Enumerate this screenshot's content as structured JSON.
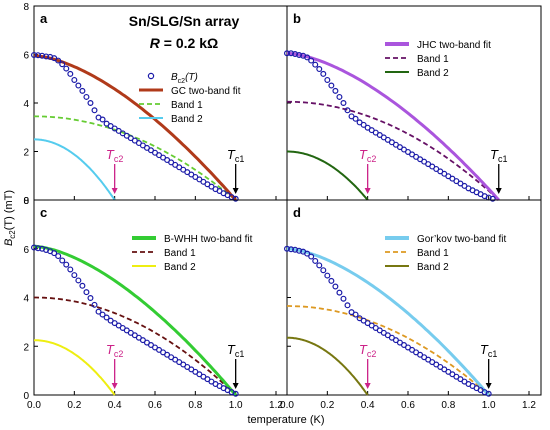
{
  "figure": {
    "ylabel_main": "B",
    "ylabel_sub": "c2",
    "ylabel_tail": "(T) (mT)",
    "xlabel": "temperature (K)",
    "x_ticks": [
      "0.0",
      "0.2",
      "0.4",
      "0.6",
      "0.8",
      "1.0",
      "0.0",
      "0.2",
      "0.4",
      "0.6",
      "0.8",
      "1.0",
      "1.2"
    ],
    "y_ticks_top": [
      "0",
      "2",
      "4",
      "6",
      "8"
    ],
    "y_ticks_bottom": [
      "0",
      "2",
      "4",
      "6",
      "8"
    ]
  },
  "chart_data": [
    {
      "panel": "a",
      "type": "scatter",
      "xlim": [
        0,
        1.2
      ],
      "ylim": [
        0,
        8
      ],
      "title_line1": "Sn/SLG/Sn array",
      "title_r": "R",
      "title_val": " = 0.2 kΩ",
      "legend": [
        "B",
        "c2",
        "(T)",
        "GC two-band fit",
        "Band 1",
        "Band 2"
      ],
      "tc2": {
        "label_main": "T",
        "label_sub": "c2",
        "x": 0.4
      },
      "tc1": {
        "label_main": "T",
        "label_sub": "c1",
        "x": 1.0
      },
      "fit": {
        "name": "GC two-band fit",
        "color": "#b03a1a",
        "tc": 1.0,
        "b0": 5.95,
        "p": 1.6
      },
      "band1": {
        "name": "Band 1",
        "color": "#66cc33",
        "tc": 1.0,
        "b0": 3.45,
        "p": 2.0
      },
      "band2": {
        "name": "Band 2",
        "color": "#55ccee",
        "tc": 0.4,
        "b0": 2.5,
        "p": 2.0
      },
      "points": [
        [
          0.0,
          5.98
        ],
        [
          0.02,
          5.97
        ],
        [
          0.04,
          5.95
        ],
        [
          0.06,
          5.92
        ],
        [
          0.08,
          5.9
        ],
        [
          0.1,
          5.85
        ],
        [
          0.12,
          5.75
        ],
        [
          0.14,
          5.6
        ],
        [
          0.16,
          5.42
        ],
        [
          0.18,
          5.2
        ],
        [
          0.2,
          4.95
        ],
        [
          0.22,
          4.72
        ],
        [
          0.24,
          4.5
        ],
        [
          0.26,
          4.25
        ],
        [
          0.28,
          4.0
        ],
        [
          0.3,
          3.7
        ],
        [
          0.32,
          3.4
        ],
        [
          0.34,
          3.32
        ],
        [
          0.36,
          3.15
        ],
        [
          0.38,
          3.05
        ],
        [
          0.4,
          2.95
        ],
        [
          0.42,
          2.85
        ],
        [
          0.44,
          2.75
        ],
        [
          0.46,
          2.65
        ],
        [
          0.48,
          2.55
        ],
        [
          0.5,
          2.45
        ],
        [
          0.52,
          2.35
        ],
        [
          0.54,
          2.25
        ],
        [
          0.56,
          2.15
        ],
        [
          0.58,
          2.05
        ],
        [
          0.6,
          1.95
        ],
        [
          0.62,
          1.85
        ],
        [
          0.64,
          1.75
        ],
        [
          0.66,
          1.65
        ],
        [
          0.68,
          1.55
        ],
        [
          0.7,
          1.45
        ],
        [
          0.72,
          1.35
        ],
        [
          0.74,
          1.25
        ],
        [
          0.76,
          1.15
        ],
        [
          0.78,
          1.05
        ],
        [
          0.8,
          0.95
        ],
        [
          0.82,
          0.85
        ],
        [
          0.84,
          0.75
        ],
        [
          0.86,
          0.65
        ],
        [
          0.88,
          0.55
        ],
        [
          0.9,
          0.45
        ],
        [
          0.92,
          0.37
        ],
        [
          0.94,
          0.28
        ],
        [
          0.96,
          0.2
        ],
        [
          0.98,
          0.12
        ],
        [
          1.0,
          0.05
        ]
      ]
    },
    {
      "panel": "b",
      "type": "scatter",
      "xlim": [
        0,
        1.2
      ],
      "ylim": [
        0,
        8
      ],
      "legend": [
        "JHC two-band fit",
        "Band 1",
        "Band 2"
      ],
      "tc2": {
        "label_main": "T",
        "label_sub": "c2",
        "x": 0.4
      },
      "tc1": {
        "label_main": "T",
        "label_sub": "c1",
        "x": 1.05
      },
      "fit": {
        "name": "JHC two-band fit",
        "color": "#aa55dd",
        "tc": 1.05,
        "b0": 6.05,
        "p": 1.6
      },
      "band1": {
        "name": "Band 1",
        "color": "#661166",
        "tc": 1.05,
        "b0": 4.05,
        "p": 2.0
      },
      "band2": {
        "name": "Band 2",
        "color": "#226611",
        "tc": 0.4,
        "b0": 2.0,
        "p": 2.0
      },
      "points": [
        [
          0.0,
          6.05
        ],
        [
          0.02,
          6.05
        ],
        [
          0.04,
          6.02
        ],
        [
          0.06,
          5.98
        ],
        [
          0.08,
          5.95
        ],
        [
          0.1,
          5.88
        ],
        [
          0.12,
          5.75
        ],
        [
          0.14,
          5.58
        ],
        [
          0.16,
          5.4
        ],
        [
          0.18,
          5.2
        ],
        [
          0.2,
          4.95
        ],
        [
          0.22,
          4.72
        ],
        [
          0.24,
          4.5
        ],
        [
          0.26,
          4.25
        ],
        [
          0.28,
          4.0
        ],
        [
          0.3,
          3.7
        ],
        [
          0.32,
          3.45
        ],
        [
          0.34,
          3.35
        ],
        [
          0.36,
          3.2
        ],
        [
          0.38,
          3.1
        ],
        [
          0.4,
          2.98
        ],
        [
          0.42,
          2.88
        ],
        [
          0.44,
          2.78
        ],
        [
          0.46,
          2.68
        ],
        [
          0.48,
          2.58
        ],
        [
          0.5,
          2.48
        ],
        [
          0.52,
          2.38
        ],
        [
          0.54,
          2.28
        ],
        [
          0.56,
          2.18
        ],
        [
          0.58,
          2.08
        ],
        [
          0.6,
          1.98
        ],
        [
          0.62,
          1.88
        ],
        [
          0.64,
          1.78
        ],
        [
          0.66,
          1.68
        ],
        [
          0.68,
          1.58
        ],
        [
          0.7,
          1.48
        ],
        [
          0.72,
          1.38
        ],
        [
          0.74,
          1.28
        ],
        [
          0.76,
          1.18
        ],
        [
          0.78,
          1.08
        ],
        [
          0.8,
          0.98
        ],
        [
          0.82,
          0.88
        ],
        [
          0.84,
          0.78
        ],
        [
          0.86,
          0.68
        ],
        [
          0.88,
          0.58
        ],
        [
          0.9,
          0.48
        ],
        [
          0.92,
          0.4
        ],
        [
          0.94,
          0.32
        ],
        [
          0.96,
          0.24
        ],
        [
          0.98,
          0.16
        ],
        [
          1.0,
          0.1
        ],
        [
          1.02,
          0.05
        ]
      ]
    },
    {
      "panel": "c",
      "type": "scatter",
      "xlim": [
        0,
        1.2
      ],
      "ylim": [
        0,
        8
      ],
      "legend": [
        "B-WHH two-band fit",
        "Band 1",
        "Band 2"
      ],
      "tc2": {
        "label_main": "T",
        "label_sub": "c2",
        "x": 0.4
      },
      "tc1": {
        "label_main": "T",
        "label_sub": "c1",
        "x": 1.0
      },
      "fit": {
        "name": "B-WHH two-band fit",
        "color": "#33cc33",
        "tc": 1.0,
        "b0": 6.1,
        "p": 1.6
      },
      "band1": {
        "name": "Band 1",
        "color": "#661111",
        "tc": 1.0,
        "b0": 4.0,
        "p": 2.0
      },
      "band2": {
        "name": "Band 2",
        "color": "#eeee11",
        "tc": 0.4,
        "b0": 2.25,
        "p": 2.0
      },
      "points": [
        [
          0.0,
          6.05
        ],
        [
          0.02,
          6.02
        ],
        [
          0.04,
          6.0
        ],
        [
          0.06,
          5.95
        ],
        [
          0.08,
          5.9
        ],
        [
          0.1,
          5.82
        ],
        [
          0.12,
          5.7
        ],
        [
          0.14,
          5.52
        ],
        [
          0.16,
          5.35
        ],
        [
          0.18,
          5.15
        ],
        [
          0.2,
          4.92
        ],
        [
          0.22,
          4.7
        ],
        [
          0.24,
          4.48
        ],
        [
          0.26,
          4.22
        ],
        [
          0.28,
          3.98
        ],
        [
          0.3,
          3.7
        ],
        [
          0.32,
          3.42
        ],
        [
          0.34,
          3.3
        ],
        [
          0.36,
          3.18
        ],
        [
          0.38,
          3.05
        ],
        [
          0.4,
          2.95
        ],
        [
          0.42,
          2.85
        ],
        [
          0.44,
          2.75
        ],
        [
          0.46,
          2.65
        ],
        [
          0.48,
          2.55
        ],
        [
          0.5,
          2.45
        ],
        [
          0.52,
          2.35
        ],
        [
          0.54,
          2.25
        ],
        [
          0.56,
          2.15
        ],
        [
          0.58,
          2.05
        ],
        [
          0.6,
          1.95
        ],
        [
          0.62,
          1.85
        ],
        [
          0.64,
          1.75
        ],
        [
          0.66,
          1.65
        ],
        [
          0.68,
          1.55
        ],
        [
          0.7,
          1.45
        ],
        [
          0.72,
          1.35
        ],
        [
          0.74,
          1.25
        ],
        [
          0.76,
          1.15
        ],
        [
          0.78,
          1.05
        ],
        [
          0.8,
          0.95
        ],
        [
          0.82,
          0.85
        ],
        [
          0.84,
          0.75
        ],
        [
          0.86,
          0.65
        ],
        [
          0.88,
          0.55
        ],
        [
          0.9,
          0.45
        ],
        [
          0.92,
          0.37
        ],
        [
          0.94,
          0.28
        ],
        [
          0.96,
          0.2
        ],
        [
          0.98,
          0.12
        ],
        [
          1.0,
          0.05
        ]
      ]
    },
    {
      "panel": "d",
      "type": "scatter",
      "xlim": [
        0,
        1.2
      ],
      "ylim": [
        0,
        8
      ],
      "legend": [
        "Gor’kov two-band fit",
        "Band 1",
        "Band 2"
      ],
      "tc2": {
        "label_main": "T",
        "label_sub": "c2",
        "x": 0.4
      },
      "tc1": {
        "label_main": "T",
        "label_sub": "c1",
        "x": 1.0
      },
      "fit": {
        "name": "Gor’kov two-band fit",
        "color": "#77ccee",
        "tc": 1.0,
        "b0": 6.0,
        "p": 1.6
      },
      "band1": {
        "name": "Band 1",
        "color": "#dd9922",
        "tc": 1.0,
        "b0": 3.65,
        "p": 2.0
      },
      "band2": {
        "name": "Band 2",
        "color": "#777711",
        "tc": 0.4,
        "b0": 2.35,
        "p": 2.0
      },
      "points": [
        [
          0.0,
          6.0
        ],
        [
          0.02,
          5.98
        ],
        [
          0.04,
          5.96
        ],
        [
          0.06,
          5.92
        ],
        [
          0.08,
          5.88
        ],
        [
          0.1,
          5.8
        ],
        [
          0.12,
          5.68
        ],
        [
          0.14,
          5.5
        ],
        [
          0.16,
          5.32
        ],
        [
          0.18,
          5.12
        ],
        [
          0.2,
          4.9
        ],
        [
          0.22,
          4.68
        ],
        [
          0.24,
          4.45
        ],
        [
          0.26,
          4.2
        ],
        [
          0.28,
          3.95
        ],
        [
          0.3,
          3.68
        ],
        [
          0.32,
          3.4
        ],
        [
          0.34,
          3.3
        ],
        [
          0.36,
          3.15
        ],
        [
          0.38,
          3.05
        ],
        [
          0.4,
          2.95
        ],
        [
          0.42,
          2.85
        ],
        [
          0.44,
          2.75
        ],
        [
          0.46,
          2.65
        ],
        [
          0.48,
          2.55
        ],
        [
          0.5,
          2.45
        ],
        [
          0.52,
          2.35
        ],
        [
          0.54,
          2.25
        ],
        [
          0.56,
          2.15
        ],
        [
          0.58,
          2.05
        ],
        [
          0.6,
          1.95
        ],
        [
          0.62,
          1.85
        ],
        [
          0.64,
          1.75
        ],
        [
          0.66,
          1.65
        ],
        [
          0.68,
          1.55
        ],
        [
          0.7,
          1.45
        ],
        [
          0.72,
          1.35
        ],
        [
          0.74,
          1.25
        ],
        [
          0.76,
          1.15
        ],
        [
          0.78,
          1.05
        ],
        [
          0.8,
          0.95
        ],
        [
          0.82,
          0.85
        ],
        [
          0.84,
          0.75
        ],
        [
          0.86,
          0.65
        ],
        [
          0.88,
          0.55
        ],
        [
          0.9,
          0.45
        ],
        [
          0.92,
          0.37
        ],
        [
          0.94,
          0.28
        ],
        [
          0.96,
          0.2
        ],
        [
          0.98,
          0.12
        ],
        [
          1.0,
          0.05
        ]
      ]
    }
  ],
  "colors": {
    "points": "#1a1aa8",
    "tc2_arrow": "#cc2288",
    "tc1_arrow": "#000000"
  }
}
